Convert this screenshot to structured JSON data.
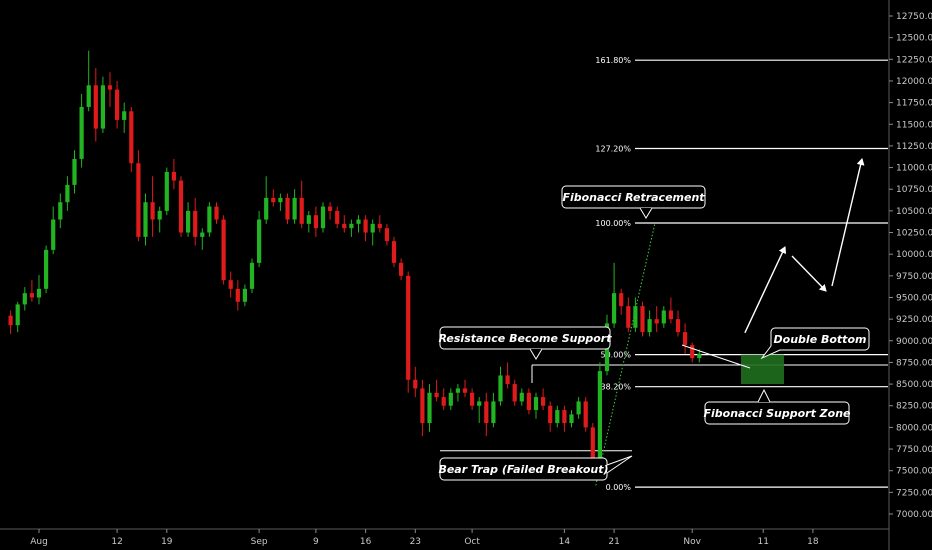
{
  "chart_data": {
    "type": "candlestick",
    "title": "",
    "y_axis": {
      "side": "right",
      "range": [
        6900,
        12900
      ],
      "ticks": [
        "12750.00",
        "12500.00",
        "12250.00",
        "12000.00",
        "11750.00",
        "11500.00",
        "11250.00",
        "11000.00",
        "10750.00",
        "10500.00",
        "10250.00",
        "10000.00",
        "9750.00",
        "9500.00",
        "9250.00",
        "9000.00",
        "8750.00",
        "8500.00",
        "8250.00",
        "8000.00",
        "7750.00",
        "7500.00",
        "7250.00",
        "7000.00"
      ]
    },
    "x_axis": {
      "ticks": [
        {
          "label": "Aug",
          "day": 0
        },
        {
          "label": "12",
          "day": 11
        },
        {
          "label": "19",
          "day": 18
        },
        {
          "label": "Sep",
          "day": 31
        },
        {
          "label": "9",
          "day": 39
        },
        {
          "label": "16",
          "day": 46
        },
        {
          "label": "23",
          "day": 53
        },
        {
          "label": "Oct",
          "day": 61
        },
        {
          "label": "14",
          "day": 74
        },
        {
          "label": "21",
          "day": 81
        },
        {
          "label": "Nov",
          "day": 92
        },
        {
          "label": "11",
          "day": 102
        },
        {
          "label": "18",
          "day": 109
        }
      ]
    },
    "colors": {
      "up": "#22b422",
      "down": "#e01b1b",
      "line": "#ffffff",
      "zone": "#1f6e1f"
    },
    "candles": [
      [
        -4,
        9290,
        9350,
        9080,
        9180
      ],
      [
        -3,
        9180,
        9450,
        9100,
        9420
      ],
      [
        -2,
        9420,
        9620,
        9350,
        9550
      ],
      [
        -1,
        9550,
        9700,
        9450,
        9500
      ],
      [
        0,
        9500,
        9760,
        9420,
        9600
      ],
      [
        1,
        9600,
        10100,
        9550,
        10050
      ],
      [
        2,
        10050,
        10550,
        10000,
        10400
      ],
      [
        3,
        10400,
        10700,
        10300,
        10600
      ],
      [
        4,
        10600,
        10900,
        10500,
        10800
      ],
      [
        5,
        10800,
        11200,
        10700,
        11100
      ],
      [
        6,
        11100,
        11850,
        11000,
        11700
      ],
      [
        7,
        11700,
        12350,
        11650,
        11950
      ],
      [
        8,
        11950,
        12150,
        11300,
        11450
      ],
      [
        9,
        11450,
        12050,
        11400,
        11950
      ],
      [
        10,
        11950,
        12100,
        11700,
        11900
      ],
      [
        11,
        11900,
        12000,
        11450,
        11550
      ],
      [
        12,
        11550,
        11750,
        11400,
        11650
      ],
      [
        13,
        11650,
        11700,
        10950,
        11050
      ],
      [
        14,
        11050,
        11200,
        10150,
        10200
      ],
      [
        15,
        10200,
        10700,
        10100,
        10600
      ],
      [
        16,
        10600,
        10900,
        10200,
        10400
      ],
      [
        17,
        10400,
        10550,
        10250,
        10500
      ],
      [
        18,
        10500,
        11000,
        10450,
        10950
      ],
      [
        19,
        10950,
        11100,
        10750,
        10850
      ],
      [
        20,
        10850,
        10900,
        10200,
        10250
      ],
      [
        21,
        10250,
        10600,
        10200,
        10500
      ],
      [
        22,
        10500,
        10650,
        10100,
        10200
      ],
      [
        23,
        10200,
        10300,
        10050,
        10250
      ],
      [
        24,
        10250,
        10600,
        10200,
        10550
      ],
      [
        25,
        10550,
        10600,
        10350,
        10400
      ],
      [
        26,
        10400,
        10450,
        9650,
        9700
      ],
      [
        27,
        9700,
        9800,
        9500,
        9600
      ],
      [
        28,
        9600,
        9700,
        9350,
        9450
      ],
      [
        29,
        9450,
        9650,
        9400,
        9600
      ],
      [
        30,
        9600,
        9950,
        9550,
        9900
      ],
      [
        31,
        9900,
        10500,
        9850,
        10400
      ],
      [
        32,
        10400,
        10900,
        10350,
        10650
      ],
      [
        33,
        10650,
        10750,
        10550,
        10600
      ],
      [
        34,
        10600,
        10700,
        10500,
        10650
      ],
      [
        35,
        10650,
        10700,
        10350,
        10400
      ],
      [
        36,
        10400,
        10750,
        10350,
        10650
      ],
      [
        37,
        10650,
        10850,
        10300,
        10350
      ],
      [
        38,
        10350,
        10500,
        10250,
        10450
      ],
      [
        39,
        10450,
        10550,
        10200,
        10300
      ],
      [
        40,
        10300,
        10600,
        10250,
        10550
      ],
      [
        41,
        10550,
        10600,
        10400,
        10500
      ],
      [
        42,
        10500,
        10550,
        10300,
        10350
      ],
      [
        43,
        10350,
        10450,
        10250,
        10300
      ],
      [
        44,
        10300,
        10400,
        10200,
        10350
      ],
      [
        45,
        10350,
        10450,
        10250,
        10400
      ],
      [
        46,
        10400,
        10450,
        10150,
        10250
      ],
      [
        47,
        10250,
        10400,
        10100,
        10350
      ],
      [
        48,
        10350,
        10450,
        10250,
        10300
      ],
      [
        49,
        10300,
        10350,
        10100,
        10150
      ],
      [
        50,
        10150,
        10200,
        9850,
        9900
      ],
      [
        51,
        9900,
        9950,
        9700,
        9750
      ],
      [
        52,
        9750,
        9800,
        8400,
        8550
      ],
      [
        53,
        8550,
        8700,
        8350,
        8450
      ],
      [
        54,
        8450,
        8550,
        7900,
        8050
      ],
      [
        55,
        8050,
        8500,
        7950,
        8400
      ],
      [
        56,
        8400,
        8550,
        8300,
        8350
      ],
      [
        57,
        8350,
        8450,
        8200,
        8250
      ],
      [
        58,
        8250,
        8450,
        8200,
        8400
      ],
      [
        59,
        8400,
        8500,
        8300,
        8450
      ],
      [
        60,
        8450,
        8550,
        8350,
        8400
      ],
      [
        61,
        8400,
        8450,
        8200,
        8250
      ],
      [
        62,
        8250,
        8350,
        8050,
        8300
      ],
      [
        63,
        8300,
        8400,
        7900,
        8050
      ],
      [
        64,
        8050,
        8400,
        8000,
        8300
      ],
      [
        65,
        8300,
        8700,
        8250,
        8600
      ],
      [
        66,
        8600,
        8750,
        8450,
        8500
      ],
      [
        67,
        8500,
        8550,
        8250,
        8300
      ],
      [
        68,
        8300,
        8450,
        8250,
        8400
      ],
      [
        69,
        8400,
        8450,
        8150,
        8200
      ],
      [
        70,
        8200,
        8400,
        8100,
        8350
      ],
      [
        71,
        8350,
        8450,
        8200,
        8250
      ],
      [
        72,
        8250,
        8300,
        7950,
        8050
      ],
      [
        73,
        8050,
        8250,
        8000,
        8200
      ],
      [
        74,
        8200,
        8250,
        7950,
        8050
      ],
      [
        75,
        8050,
        8200,
        8000,
        8150
      ],
      [
        76,
        8150,
        8350,
        8100,
        8300
      ],
      [
        77,
        8300,
        8350,
        7950,
        8000
      ],
      [
        78,
        8000,
        8050,
        7400,
        7500
      ],
      [
        79,
        7500,
        8750,
        7450,
        8650
      ],
      [
        80,
        8650,
        9300,
        8600,
        9200
      ],
      [
        81,
        9200,
        9900,
        9150,
        9550
      ],
      [
        82,
        9550,
        9600,
        9300,
        9400
      ],
      [
        83,
        9400,
        9500,
        9100,
        9150
      ],
      [
        84,
        9150,
        9500,
        9100,
        9400
      ],
      [
        85,
        9400,
        9450,
        9050,
        9100
      ],
      [
        86,
        9100,
        9350,
        9050,
        9250
      ],
      [
        87,
        9250,
        9400,
        9100,
        9200
      ],
      [
        88,
        9200,
        9400,
        9150,
        9350
      ],
      [
        89,
        9350,
        9500,
        9200,
        9250
      ],
      [
        90,
        9250,
        9350,
        9050,
        9100
      ],
      [
        91,
        9100,
        9200,
        8850,
        8950
      ],
      [
        92,
        8950,
        8980,
        8750,
        8800
      ],
      [
        93,
        8800,
        8900,
        8750,
        8850
      ]
    ],
    "fibonacci": {
      "levels": [
        {
          "label": "161.80%",
          "value": 12240
        },
        {
          "label": "127.20%",
          "value": 11220
        },
        {
          "label": "100.00%",
          "value": 10360
        },
        {
          "label": "50.00%",
          "value": 8840
        },
        {
          "label": "38.20%",
          "value": 8470
        },
        {
          "label": "0.00%",
          "value": 7310
        }
      ]
    },
    "annotations": {
      "fib_retracement": "Fibonacci Retracement",
      "resistance_support": "Resistance Become Support",
      "bear_trap": "Bear Trap (Failed Breakout)",
      "double_bottom": "Double Bottom",
      "fib_support_zone": "Fibonacci Support Zone"
    },
    "support_level": 8720,
    "bear_trap_level": 7730,
    "zone": {
      "day_start": 94,
      "day_end": 99,
      "low": 8500,
      "high": 8840
    },
    "projection": [
      [
        99,
        9000
      ],
      [
        101,
        10050
      ],
      [
        102,
        9950
      ],
      [
        105,
        9650
      ],
      [
        110,
        11150
      ]
    ]
  }
}
